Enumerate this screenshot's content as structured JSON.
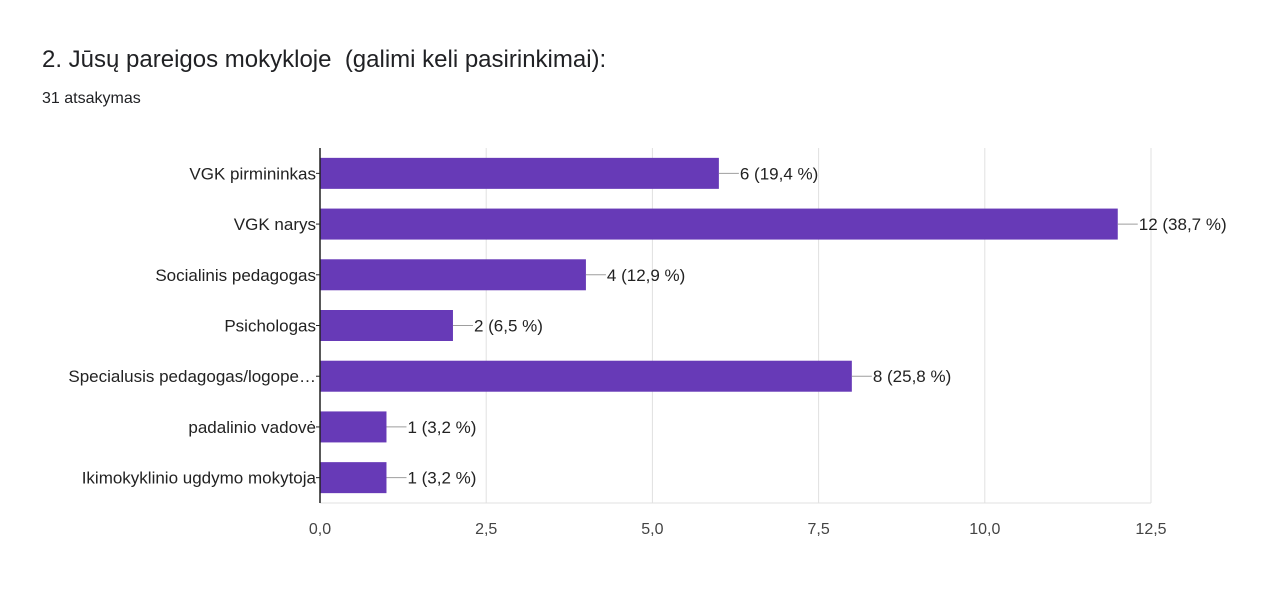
{
  "question": {
    "title": "2. Jūsų pareigos mokykloje  (galimi keli pasirinkimai):",
    "response_count": "31 atsakymas"
  },
  "colors": {
    "bar": "#673ab7",
    "grid": "#e0e0e0",
    "axis": "#222222",
    "leader": "#9e9e9e"
  },
  "chart_data": {
    "type": "bar",
    "orientation": "horizontal",
    "categories": [
      "VGK pirmininkas",
      "VGK narys",
      "Socialinis pedagogas",
      "Psichologas",
      "Specialusis pedagogas/logope…",
      "padalinio vadovė",
      "Ikimokyklinio ugdymo mokytoja"
    ],
    "values": [
      6,
      12,
      4,
      2,
      8,
      1,
      1
    ],
    "data_labels": [
      "6 (19,4 %)",
      "12 (38,7 %)",
      "4 (12,9 %)",
      "2 (6,5 %)",
      "8 (25,8 %)",
      "1 (3,2 %)",
      "1 (3,2 %)"
    ],
    "xlim": [
      0,
      12.5
    ],
    "x_ticks": [
      0,
      2.5,
      5,
      7.5,
      10,
      12.5
    ],
    "x_tick_labels": [
      "0,0",
      "2,5",
      "5,0",
      "7,5",
      "10,0",
      "12,5"
    ],
    "grid": true,
    "legend": "none"
  }
}
